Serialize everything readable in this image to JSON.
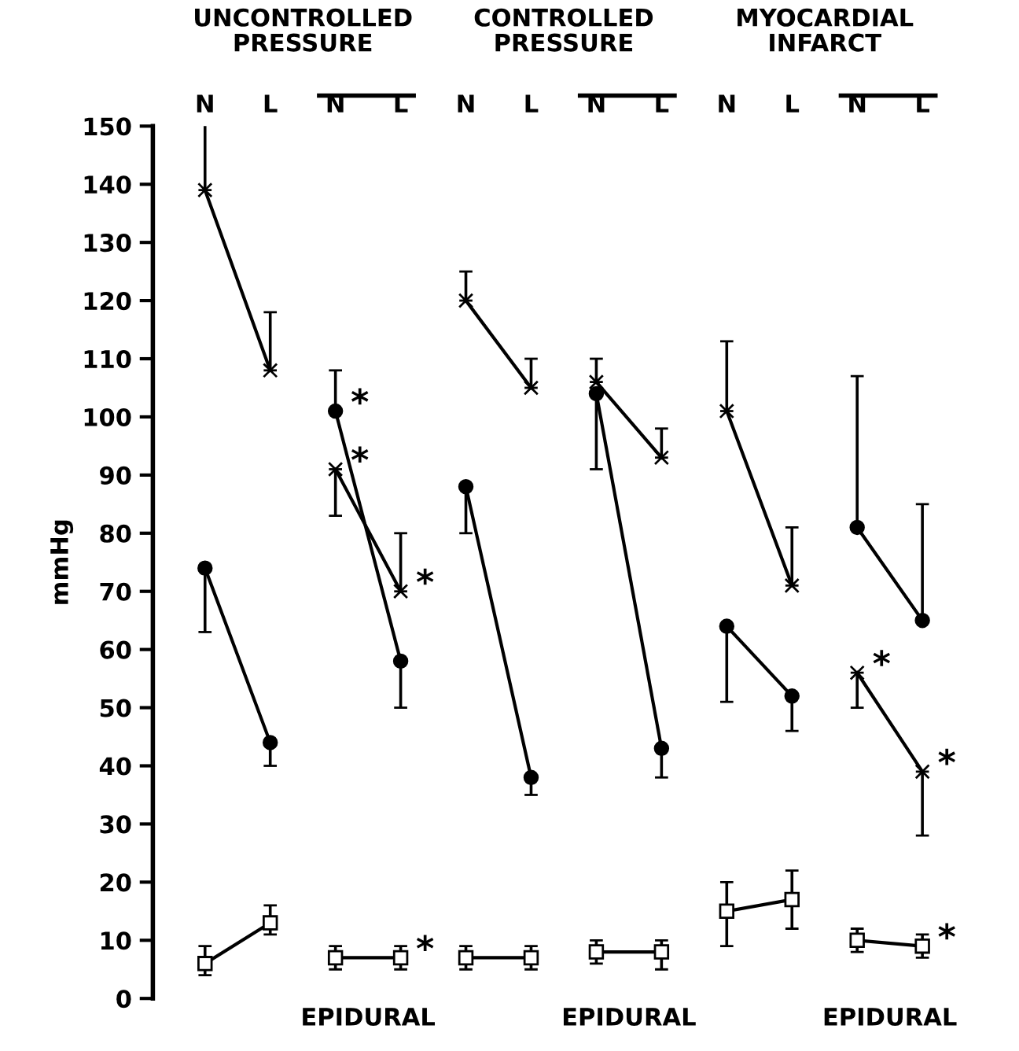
{
  "chart_data": {
    "type": "line",
    "ylabel": "mmHg",
    "categories": [
      "N",
      "L",
      "N",
      "L",
      "N",
      "L",
      "N",
      "L",
      "N",
      "L",
      "N",
      "L"
    ],
    "ylim": [
      0,
      150
    ],
    "yticks": [
      0,
      10,
      20,
      30,
      40,
      50,
      60,
      70,
      80,
      90,
      100,
      110,
      120,
      130,
      140,
      150
    ],
    "grid": false,
    "legend": false,
    "line_style": "solid",
    "series": [
      {
        "color": "#000000",
        "marker": "cross",
        "values": [
          139,
          108,
          null,
          null,
          null,
          null,
          null,
          null,
          null,
          null,
          null,
          null
        ],
        "errors": [
          [
            139,
            152
          ],
          [
            108,
            118
          ],
          null,
          null,
          null,
          null,
          null,
          null,
          null,
          null,
          null,
          null
        ]
      },
      {
        "color": "#000000",
        "marker": "circle",
        "values": [
          74,
          44,
          null,
          null,
          null,
          null,
          null,
          null,
          null,
          null,
          null,
          null
        ],
        "errors": [
          [
            63,
            74
          ],
          [
            40,
            44
          ],
          null,
          null,
          null,
          null,
          null,
          null,
          null,
          null,
          null,
          null
        ]
      },
      {
        "color": "#000000",
        "marker": "square",
        "values": [
          6,
          13,
          null,
          null,
          null,
          null,
          null,
          null,
          null,
          null,
          null,
          null
        ],
        "errors": [
          [
            4,
            9
          ],
          [
            11,
            16
          ],
          null,
          null,
          null,
          null,
          null,
          null,
          null,
          null,
          null,
          null
        ]
      },
      {
        "color": "#000000",
        "marker": "circle",
        "values": [
          null,
          null,
          101,
          58,
          null,
          null,
          null,
          null,
          null,
          null,
          null,
          null
        ],
        "errors": [
          null,
          null,
          [
            101,
            108
          ],
          [
            50,
            58
          ],
          null,
          null,
          null,
          null,
          null,
          null,
          null,
          null
        ],
        "value_labels": [
          null,
          null,
          "*",
          null,
          null,
          null,
          null,
          null,
          null,
          null,
          null,
          null
        ]
      },
      {
        "color": "#000000",
        "marker": "cross",
        "values": [
          null,
          null,
          91,
          70,
          null,
          null,
          null,
          null,
          null,
          null,
          null,
          null
        ],
        "errors": [
          null,
          null,
          [
            83,
            91
          ],
          [
            70,
            80
          ],
          null,
          null,
          null,
          null,
          null,
          null,
          null,
          null
        ],
        "value_labels": [
          null,
          null,
          "*",
          "*",
          null,
          null,
          null,
          null,
          null,
          null,
          null,
          null
        ]
      },
      {
        "color": "#000000",
        "marker": "square",
        "values": [
          null,
          null,
          7,
          7,
          null,
          null,
          null,
          null,
          null,
          null,
          null,
          null
        ],
        "errors": [
          null,
          null,
          [
            5,
            9
          ],
          [
            5,
            9
          ],
          null,
          null,
          null,
          null,
          null,
          null,
          null,
          null
        ],
        "value_labels": [
          null,
          null,
          null,
          "*",
          null,
          null,
          null,
          null,
          null,
          null,
          null,
          null
        ]
      },
      {
        "color": "#000000",
        "marker": "cross",
        "values": [
          null,
          null,
          null,
          null,
          120,
          105,
          null,
          null,
          null,
          null,
          null,
          null
        ],
        "errors": [
          null,
          null,
          null,
          null,
          [
            120,
            125
          ],
          [
            105,
            110
          ],
          null,
          null,
          null,
          null,
          null,
          null
        ]
      },
      {
        "color": "#000000",
        "marker": "circle",
        "values": [
          null,
          null,
          null,
          null,
          88,
          38,
          null,
          null,
          null,
          null,
          null,
          null
        ],
        "errors": [
          null,
          null,
          null,
          null,
          [
            80,
            88
          ],
          [
            35,
            38
          ],
          null,
          null,
          null,
          null,
          null,
          null
        ]
      },
      {
        "color": "#000000",
        "marker": "square",
        "values": [
          null,
          null,
          null,
          null,
          7,
          7,
          null,
          null,
          null,
          null,
          null,
          null
        ],
        "errors": [
          null,
          null,
          null,
          null,
          [
            5,
            9
          ],
          [
            5,
            9
          ],
          null,
          null,
          null,
          null,
          null,
          null
        ]
      },
      {
        "color": "#000000",
        "marker": "cross",
        "values": [
          null,
          null,
          null,
          null,
          null,
          null,
          106,
          93,
          null,
          null,
          null,
          null
        ],
        "errors": [
          null,
          null,
          null,
          null,
          null,
          null,
          [
            106,
            110
          ],
          [
            93,
            98
          ],
          null,
          null,
          null,
          null
        ]
      },
      {
        "color": "#000000",
        "marker": "circle",
        "values": [
          null,
          null,
          null,
          null,
          null,
          null,
          104,
          43,
          null,
          null,
          null,
          null
        ],
        "errors": [
          null,
          null,
          null,
          null,
          null,
          null,
          [
            91,
            104
          ],
          [
            38,
            43
          ],
          null,
          null,
          null,
          null
        ]
      },
      {
        "color": "#000000",
        "marker": "square",
        "values": [
          null,
          null,
          null,
          null,
          null,
          null,
          8,
          8,
          null,
          null,
          null,
          null
        ],
        "errors": [
          null,
          null,
          null,
          null,
          null,
          null,
          [
            6,
            10
          ],
          [
            5,
            10
          ],
          null,
          null,
          null,
          null
        ]
      },
      {
        "color": "#000000",
        "marker": "cross",
        "values": [
          null,
          null,
          null,
          null,
          null,
          null,
          null,
          null,
          101,
          71,
          null,
          null
        ],
        "errors": [
          null,
          null,
          null,
          null,
          null,
          null,
          null,
          null,
          [
            101,
            113
          ],
          [
            71,
            81
          ],
          null,
          null
        ]
      },
      {
        "color": "#000000",
        "marker": "circle",
        "values": [
          null,
          null,
          null,
          null,
          null,
          null,
          null,
          null,
          64,
          52,
          null,
          null
        ],
        "errors": [
          null,
          null,
          null,
          null,
          null,
          null,
          null,
          null,
          [
            51,
            64
          ],
          [
            46,
            52
          ],
          null,
          null
        ]
      },
      {
        "color": "#000000",
        "marker": "square",
        "values": [
          null,
          null,
          null,
          null,
          null,
          null,
          null,
          null,
          15,
          17,
          null,
          null
        ],
        "errors": [
          null,
          null,
          null,
          null,
          null,
          null,
          null,
          null,
          [
            9,
            20
          ],
          [
            12,
            22
          ],
          null,
          null
        ]
      },
      {
        "color": "#000000",
        "marker": "circle",
        "values": [
          null,
          null,
          null,
          null,
          null,
          null,
          null,
          null,
          null,
          null,
          81,
          65
        ],
        "errors": [
          null,
          null,
          null,
          null,
          null,
          null,
          null,
          null,
          null,
          null,
          [
            81,
            107
          ],
          [
            65,
            85
          ]
        ]
      },
      {
        "color": "#000000",
        "marker": "cross",
        "values": [
          null,
          null,
          null,
          null,
          null,
          null,
          null,
          null,
          null,
          null,
          56,
          39
        ],
        "errors": [
          null,
          null,
          null,
          null,
          null,
          null,
          null,
          null,
          null,
          null,
          [
            50,
            56
          ],
          [
            28,
            39
          ]
        ],
        "value_labels": [
          null,
          null,
          null,
          null,
          null,
          null,
          null,
          null,
          null,
          null,
          "*",
          "*"
        ]
      },
      {
        "color": "#000000",
        "marker": "square",
        "values": [
          null,
          null,
          null,
          null,
          null,
          null,
          null,
          null,
          null,
          null,
          10,
          9
        ],
        "errors": [
          null,
          null,
          null,
          null,
          null,
          null,
          null,
          null,
          null,
          null,
          [
            8,
            12
          ],
          [
            7,
            11
          ]
        ],
        "value_labels": [
          null,
          null,
          null,
          null,
          null,
          null,
          null,
          null,
          null,
          null,
          null,
          "*"
        ]
      }
    ],
    "annotations": [
      "UNCONTROLLED\nPRESSURE",
      "CONTROLLED\nPRESSURE",
      "MYOCARDIAL\nINFARCT",
      "EPIDURAL",
      "EPIDURAL",
      "EPIDURAL"
    ]
  }
}
